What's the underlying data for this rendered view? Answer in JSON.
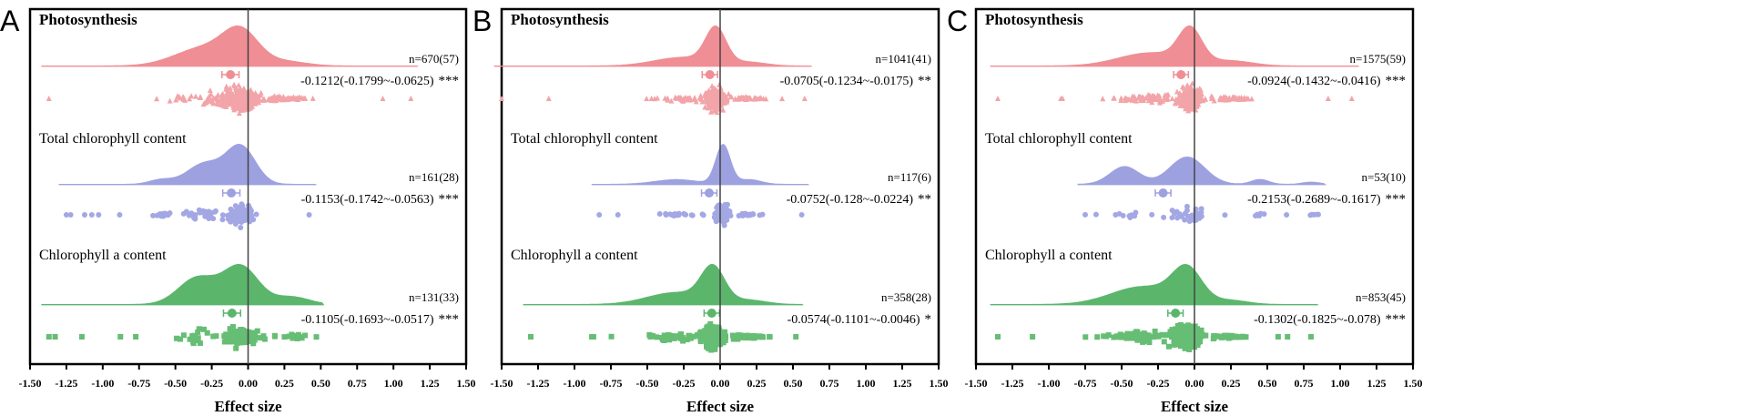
{
  "chart_data": [
    {
      "type": "raincloud",
      "panel": "A",
      "xlabel": "Effect size",
      "xlim": [
        -1.5,
        1.5
      ],
      "ticks": [
        "-1.50",
        "-1.25",
        "-1.00",
        "-0.75",
        "-0.50",
        "-0.25",
        "0.00",
        "0.25",
        "0.50",
        "0.75",
        "1.00",
        "1.25",
        "1.50"
      ],
      "rows": [
        {
          "label": "Photosynthesis",
          "bold": true,
          "n": "n=670(57)",
          "estimate": "-0.1212(-0.1799~-0.0625)",
          "stars": "***",
          "mean": -0.1212,
          "ci": [
            -0.1799,
            -0.0625
          ],
          "range": [
            -1.37,
            1.12
          ],
          "shape": "triangle",
          "density": [
            [
              -0.05,
              0.12,
              1
            ],
            [
              -0.3,
              0.2,
              0.6
            ],
            [
              0.25,
              0.15,
              0.15
            ]
          ],
          "color": "#ef8e94",
          "pointColor": "#f2a4a8"
        },
        {
          "label": "Total chlorophyll content",
          "bold": false,
          "n": "n=161(28)",
          "estimate": "-0.1153(-0.1742~-0.0563)",
          "stars": "***",
          "mean": -0.1153,
          "ci": [
            -0.1742,
            -0.0563
          ],
          "range": [
            -1.25,
            0.42
          ],
          "shape": "circle",
          "density": [
            [
              -0.05,
              0.1,
              1
            ],
            [
              -0.3,
              0.12,
              0.55
            ],
            [
              -0.6,
              0.08,
              0.12
            ]
          ],
          "color": "#9da1e0",
          "pointColor": "#a3a7e4"
        },
        {
          "label": "Chlorophyll a content",
          "bold": false,
          "n": "n=131(33)",
          "estimate": "-0.1105(-0.1693~-0.0517)",
          "stars": "***",
          "mean": -0.1105,
          "ci": [
            -0.1693,
            -0.0517
          ],
          "range": [
            -1.37,
            0.47
          ],
          "shape": "square",
          "density": [
            [
              -0.05,
              0.12,
              1
            ],
            [
              -0.35,
              0.13,
              0.7
            ],
            [
              0.3,
              0.12,
              0.2
            ]
          ],
          "color": "#5bb66c",
          "pointColor": "#66bd74"
        }
      ]
    },
    {
      "type": "raincloud",
      "panel": "B",
      "xlabel": "Effect size",
      "xlim": [
        -1.5,
        1.5
      ],
      "ticks": [
        "-1.50",
        "-1.25",
        "-1.00",
        "-0.75",
        "-0.50",
        "-0.25",
        "0.00",
        "0.25",
        "0.50",
        "0.75",
        "1.00",
        "1.25",
        "1.50"
      ],
      "rows": [
        {
          "label": "Photosynthesis",
          "bold": true,
          "n": "n=1041(41)",
          "estimate": "-0.0705(-0.1234~-0.0175)",
          "stars": "**",
          "mean": -0.0705,
          "ci": [
            -0.1234,
            -0.0175
          ],
          "range": [
            -1.5,
            0.58
          ],
          "shape": "triangle",
          "density": [
            [
              -0.03,
              0.07,
              1
            ],
            [
              -0.25,
              0.2,
              0.25
            ],
            [
              0.2,
              0.12,
              0.1
            ]
          ],
          "color": "#ef8e94",
          "pointColor": "#f2a4a8"
        },
        {
          "label": "Total chlorophyll content",
          "bold": false,
          "n": "n=117(6)",
          "estimate": "-0.0752(-0.128~-0.0224)",
          "stars": "**",
          "mean": -0.0752,
          "ci": [
            -0.128,
            -0.0224
          ],
          "range": [
            -0.83,
            0.56
          ],
          "shape": "circle",
          "density": [
            [
              0.02,
              0.05,
              1
            ],
            [
              -0.3,
              0.15,
              0.12
            ],
            [
              0.2,
              0.08,
              0.12
            ]
          ],
          "color": "#9da1e0",
          "pointColor": "#a3a7e4"
        },
        {
          "label": "Chlorophyll a content",
          "bold": false,
          "n": "n=358(28)",
          "estimate": "-0.0574(-0.1101~-0.0046)",
          "stars": "*",
          "mean": -0.0574,
          "ci": [
            -0.1101,
            -0.0046
          ],
          "range": [
            -1.3,
            0.52
          ],
          "shape": "square",
          "density": [
            [
              -0.05,
              0.08,
              1
            ],
            [
              -0.3,
              0.2,
              0.35
            ],
            [
              0.2,
              0.12,
              0.12
            ]
          ],
          "color": "#5bb66c",
          "pointColor": "#66bd74"
        }
      ]
    },
    {
      "type": "raincloud",
      "panel": "C",
      "xlabel": "Effect size",
      "xlim": [
        -1.5,
        1.5
      ],
      "ticks": [
        "-1.50",
        "-1.25",
        "-1.00",
        "-0.75",
        "-0.50",
        "-0.25",
        "0.00",
        "0.25",
        "0.50",
        "0.75",
        "1.00",
        "1.25",
        "1.50"
      ],
      "rows": [
        {
          "label": "Photosynthesis",
          "bold": true,
          "n": "n=1575(59)",
          "estimate": "-0.0924(-0.1432~-0.0416)",
          "stars": "***",
          "mean": -0.0924,
          "ci": [
            -0.1432,
            -0.0416
          ],
          "range": [
            -1.35,
            1.08
          ],
          "shape": "triangle",
          "density": [
            [
              -0.03,
              0.08,
              1
            ],
            [
              -0.3,
              0.22,
              0.4
            ],
            [
              0.25,
              0.15,
              0.15
            ]
          ],
          "color": "#ef8e94",
          "pointColor": "#f2a4a8"
        },
        {
          "label": "Total chlorophyll content",
          "bold": false,
          "n": "n=53(10)",
          "estimate": "-0.2153(-0.2689~-0.1617)",
          "stars": "***",
          "mean": -0.2153,
          "ci": [
            -0.2689,
            -0.1617
          ],
          "range": [
            -0.75,
            0.85
          ],
          "shape": "circle",
          "density": [
            [
              -0.05,
              0.12,
              1
            ],
            [
              -0.48,
              0.1,
              0.65
            ],
            [
              0.45,
              0.06,
              0.18
            ],
            [
              0.8,
              0.06,
              0.08
            ]
          ],
          "color": "#9da1e0",
          "pointColor": "#a3a7e4"
        },
        {
          "label": "Chlorophyll a content",
          "bold": false,
          "n": "n=853(45)",
          "estimate": "-0.1302(-0.1825~-0.078)",
          "stars": "***",
          "mean": -0.1302,
          "ci": [
            -0.1825,
            -0.078
          ],
          "range": [
            -1.35,
            0.8
          ],
          "shape": "square",
          "density": [
            [
              -0.05,
              0.1,
              1
            ],
            [
              -0.35,
              0.22,
              0.55
            ],
            [
              0.25,
              0.12,
              0.12
            ]
          ],
          "color": "#5bb66c",
          "pointColor": "#66bd74"
        }
      ]
    }
  ]
}
